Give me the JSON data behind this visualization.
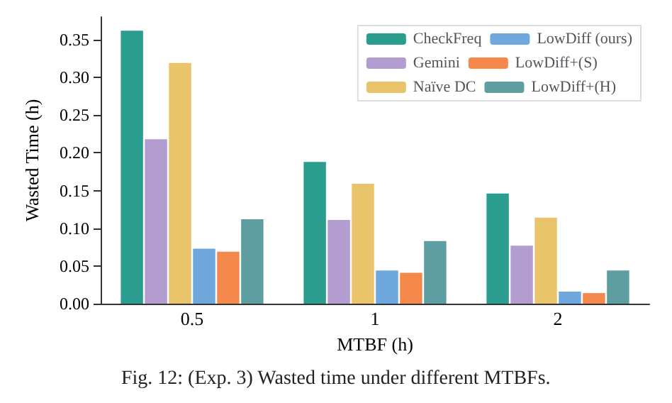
{
  "chart_data": {
    "type": "bar",
    "xlabel": "MTBF (h)",
    "ylabel": "Wasted Time (h)",
    "categories": [
      "0.5",
      "1",
      "2"
    ],
    "series": [
      {
        "name": "CheckFreq",
        "color": "#2a9d8f",
        "values": [
          0.362,
          0.188,
          0.146
        ]
      },
      {
        "name": "Gemini",
        "color": "#b39ccf",
        "values": [
          0.218,
          0.111,
          0.077
        ]
      },
      {
        "name": "Naïve DC",
        "color": "#e9c46a",
        "values": [
          0.319,
          0.159,
          0.114
        ]
      },
      {
        "name": "LowDiff (ours)",
        "color": "#6fa8dc",
        "values": [
          0.073,
          0.044,
          0.016
        ]
      },
      {
        "name": "LowDiff+(S)",
        "color": "#f4894b",
        "values": [
          0.069,
          0.041,
          0.014
        ]
      },
      {
        "name": "LowDiff+(H)",
        "color": "#5f9ea0",
        "values": [
          0.112,
          0.083,
          0.044
        ]
      }
    ],
    "ylim": [
      0,
      0.38
    ],
    "yticks": [
      {
        "value": 0,
        "label": "0.00"
      },
      {
        "value": 0.05,
        "label": "0.05"
      },
      {
        "value": 0.1,
        "label": "0.10"
      },
      {
        "value": 0.15,
        "label": "0.15"
      },
      {
        "value": 0.2,
        "label": "0.20"
      },
      {
        "value": 0.25,
        "label": "0.25"
      },
      {
        "value": 0.3,
        "label": "0.30"
      },
      {
        "value": 0.35,
        "label": "0.35"
      }
    ],
    "grid": false,
    "legend": "top right",
    "annotations": [
      "Fig. 12: (Exp. 3) Wasted time under different MTBFs."
    ]
  }
}
